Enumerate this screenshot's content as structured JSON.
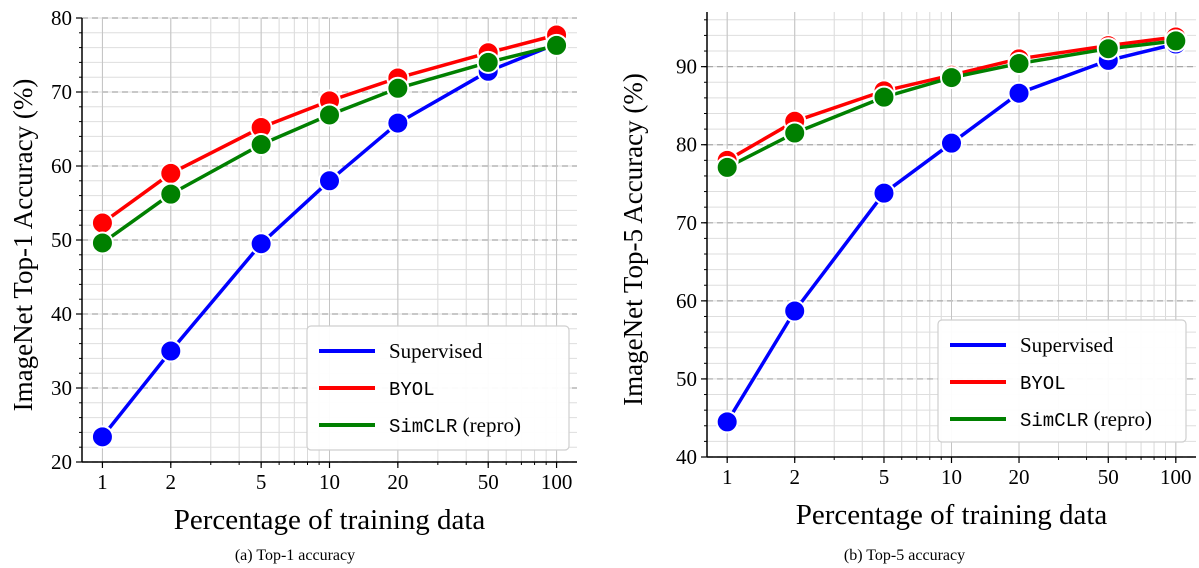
{
  "colors": {
    "Supervised": "#0000ff",
    "BYOL": "#ff0000",
    "SimCLR": "#008000"
  },
  "chart_data": [
    {
      "type": "line",
      "caption": "(a) Top-1 accuracy",
      "xlabel": "Percentage of training data",
      "ylabel": "ImageNet Top-1 Accuracy (%)",
      "x_scale": "log",
      "xticks": [
        1,
        2,
        5,
        10,
        20,
        50,
        100
      ],
      "x": [
        1,
        2,
        5,
        10,
        20,
        50,
        100
      ],
      "ylim": [
        20,
        80
      ],
      "yticks": [
        20,
        30,
        40,
        50,
        60,
        70,
        80
      ],
      "grid": true,
      "legend_position": "lower-right",
      "series": [
        {
          "name": "Supervised",
          "values": [
            23.4,
            35.0,
            49.5,
            58.0,
            65.8,
            72.8,
            76.5
          ]
        },
        {
          "name": "BYOL",
          "values": [
            52.3,
            59.0,
            65.2,
            68.8,
            71.9,
            75.3,
            77.7
          ]
        },
        {
          "name": "SimCLR (repro)",
          "values": [
            49.6,
            56.2,
            62.9,
            66.9,
            70.5,
            74.0,
            76.3
          ]
        }
      ]
    },
    {
      "type": "line",
      "caption": "(b) Top-5 accuracy",
      "xlabel": "Percentage of training data",
      "ylabel": "ImageNet Top-5 Accuracy (%)",
      "x_scale": "log",
      "xticks": [
        1,
        2,
        5,
        10,
        20,
        50,
        100
      ],
      "x": [
        1,
        2,
        5,
        10,
        20,
        50,
        100
      ],
      "ylim": [
        40,
        97
      ],
      "yticks": [
        40,
        50,
        60,
        70,
        80,
        90
      ],
      "grid": true,
      "legend_position": "lower-right",
      "series": [
        {
          "name": "Supervised",
          "values": [
            44.5,
            58.7,
            73.8,
            80.2,
            86.6,
            90.8,
            92.9
          ]
        },
        {
          "name": "BYOL",
          "values": [
            78.0,
            83.0,
            86.9,
            88.9,
            91.0,
            92.7,
            93.8
          ]
        },
        {
          "name": "SimCLR (repro)",
          "values": [
            77.1,
            81.5,
            86.1,
            88.6,
            90.4,
            92.3,
            93.3
          ]
        }
      ]
    }
  ]
}
